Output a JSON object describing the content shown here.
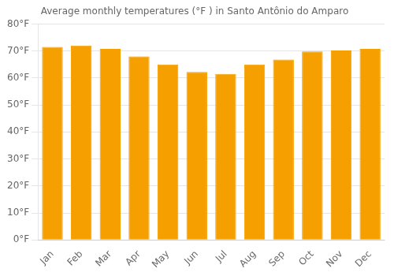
{
  "chart_data": {
    "type": "bar",
    "title": "Average monthly temperatures (°F ) in Santo Antônio do Amparo",
    "categories": [
      "Jan",
      "Feb",
      "Mar",
      "Apr",
      "May",
      "Jun",
      "Jul",
      "Aug",
      "Sep",
      "Oct",
      "Nov",
      "Dec"
    ],
    "values": [
      71.5,
      72.0,
      70.8,
      68.0,
      65.0,
      62.2,
      61.5,
      65.0,
      66.8,
      69.8,
      70.2,
      70.8
    ],
    "color": "#F5A000",
    "ylim": [
      0,
      80
    ],
    "yticks": [
      {
        "value": 0,
        "label": "0°F"
      },
      {
        "value": 10,
        "label": "10°F"
      },
      {
        "value": 20,
        "label": "20°F"
      },
      {
        "value": 30,
        "label": "30°F"
      },
      {
        "value": 40,
        "label": "40°F"
      },
      {
        "value": 50,
        "label": "50°F"
      },
      {
        "value": 60,
        "label": "60°F"
      },
      {
        "value": 70,
        "label": "70°F"
      },
      {
        "value": 80,
        "label": "80°F"
      }
    ],
    "grid": true
  }
}
